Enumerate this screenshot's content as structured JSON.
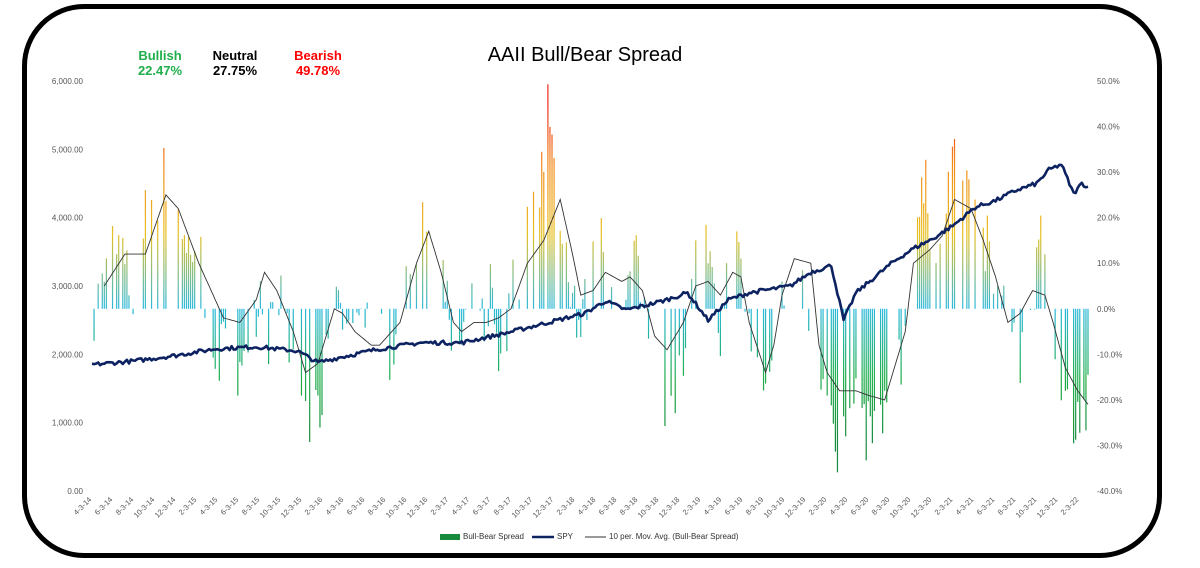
{
  "header": {
    "bullish_label": "Bullish",
    "bullish_value": "22.47%",
    "neutral_label": "Neutral",
    "neutral_value": "27.75%",
    "bearish_label": "Bearish",
    "bearish_value": "49.78%",
    "colors": {
      "bullish": "#1fae4b",
      "neutral": "#000000",
      "bearish": "#ff0000"
    }
  },
  "chart_data": {
    "type": "bar+line",
    "title": "AAII Bull/Bear Spread",
    "left_axis": {
      "ticks": [
        "0.00",
        "1,000.00",
        "2,000.00",
        "3,000.00",
        "4,000.00",
        "5,000.00",
        "6,000.00"
      ],
      "ylim": [
        0,
        6000
      ]
    },
    "right_axis": {
      "ticks": [
        "-40.0%",
        "-30.0%",
        "-20.0%",
        "-10.0%",
        "0.0%",
        "10.0%",
        "20.0%",
        "30.0%",
        "40.0%",
        "50.0%"
      ],
      "ylim": [
        -40,
        50
      ]
    },
    "x_tick_labels": [
      "4-3-14",
      "6-3-14",
      "8-3-14",
      "10-3-14",
      "12-3-14",
      "2-3-15",
      "4-3-15",
      "6-3-15",
      "8-3-15",
      "10-3-15",
      "12-3-15",
      "2-3-16",
      "4-3-16",
      "6-3-16",
      "8-3-16",
      "10-3-16",
      "12-3-16",
      "2-3-17",
      "4-3-17",
      "6-3-17",
      "8-3-17",
      "10-3-17",
      "12-3-17",
      "2-3-18",
      "4-3-18",
      "6-3-18",
      "8-3-18",
      "10-3-18",
      "12-3-18",
      "2-3-19",
      "4-3-19",
      "6-3-19",
      "8-3-19",
      "10-3-19",
      "12-3-19",
      "2-3-20",
      "4-3-20",
      "6-3-20",
      "8-3-20",
      "10-3-20",
      "12-3-20",
      "2-3-21",
      "4-3-21",
      "6-3-21",
      "8-3-21",
      "10-3-21",
      "12-3-21",
      "2-3-22"
    ],
    "legend": [
      "Bull-Bear Spread",
      "SPY",
      "10 per. Mov. Avg. (Bull-Bear Spread)"
    ],
    "series": [
      {
        "name": "Bull-Bear Spread",
        "axis": "right",
        "kind": "bar",
        "anchors": [
          [
            0,
            -8
          ],
          [
            3,
            5
          ],
          [
            6,
            3
          ],
          [
            10,
            15
          ],
          [
            14,
            10
          ],
          [
            18,
            5
          ],
          [
            22,
            -2
          ],
          [
            26,
            20
          ],
          [
            30,
            25
          ],
          [
            34,
            28
          ],
          [
            38,
            30
          ],
          [
            42,
            20
          ],
          [
            46,
            12
          ],
          [
            50,
            15
          ],
          [
            54,
            8
          ],
          [
            58,
            -5
          ],
          [
            62,
            -10
          ],
          [
            66,
            -8
          ],
          [
            70,
            -18
          ],
          [
            74,
            -5
          ],
          [
            78,
            -2
          ],
          [
            82,
            5
          ],
          [
            86,
            -5
          ],
          [
            90,
            8
          ],
          [
            94,
            -6
          ],
          [
            98,
            -15
          ],
          [
            102,
            -20
          ],
          [
            106,
            -28
          ],
          [
            110,
            -25
          ],
          [
            114,
            -10
          ],
          [
            118,
            5
          ],
          [
            122,
            3
          ],
          [
            126,
            0
          ],
          [
            130,
            -8
          ],
          [
            134,
            -5
          ],
          [
            138,
            -3
          ],
          [
            142,
            -10
          ],
          [
            146,
            -12
          ],
          [
            150,
            -8
          ],
          [
            154,
            5
          ],
          [
            158,
            15
          ],
          [
            162,
            25
          ],
          [
            166,
            20
          ],
          [
            170,
            10
          ],
          [
            174,
            -5
          ],
          [
            178,
            -12
          ],
          [
            182,
            -8
          ],
          [
            186,
            0
          ],
          [
            190,
            -5
          ],
          [
            194,
            5
          ],
          [
            198,
            -10
          ],
          [
            202,
            -5
          ],
          [
            206,
            8
          ],
          [
            210,
            12
          ],
          [
            214,
            20
          ],
          [
            218,
            30
          ],
          [
            222,
            42
          ],
          [
            226,
            28
          ],
          [
            230,
            15
          ],
          [
            234,
            5
          ],
          [
            238,
            -5
          ],
          [
            242,
            5
          ],
          [
            246,
            10
          ],
          [
            250,
            18
          ],
          [
            254,
            8
          ],
          [
            258,
            0
          ],
          [
            262,
            5
          ],
          [
            266,
            10
          ],
          [
            270,
            -3
          ],
          [
            274,
            -10
          ],
          [
            278,
            -18
          ],
          [
            282,
            -25
          ],
          [
            286,
            -15
          ],
          [
            290,
            -5
          ],
          [
            294,
            10
          ],
          [
            298,
            15
          ],
          [
            302,
            5
          ],
          [
            306,
            -5
          ],
          [
            310,
            8
          ],
          [
            314,
            12
          ],
          [
            318,
            0
          ],
          [
            322,
            -10
          ],
          [
            326,
            -20
          ],
          [
            330,
            -15
          ],
          [
            334,
            -5
          ],
          [
            338,
            5
          ],
          [
            342,
            15
          ],
          [
            346,
            10
          ],
          [
            350,
            -5
          ],
          [
            354,
            -18
          ],
          [
            358,
            -22
          ],
          [
            362,
            -28
          ],
          [
            366,
            -30
          ],
          [
            370,
            -25
          ],
          [
            374,
            -20
          ],
          [
            378,
            -28
          ],
          [
            382,
            -22
          ],
          [
            386,
            -25
          ],
          [
            390,
            -15
          ],
          [
            394,
            -10
          ],
          [
            398,
            5
          ],
          [
            402,
            20
          ],
          [
            406,
            25
          ],
          [
            410,
            15
          ],
          [
            414,
            20
          ],
          [
            418,
            28
          ],
          [
            422,
            32
          ],
          [
            426,
            25
          ],
          [
            430,
            20
          ],
          [
            434,
            15
          ],
          [
            438,
            10
          ],
          [
            442,
            5
          ],
          [
            446,
            0
          ],
          [
            450,
            -5
          ],
          [
            454,
            -12
          ],
          [
            458,
            5
          ],
          [
            462,
            15
          ],
          [
            466,
            10
          ],
          [
            470,
            -10
          ],
          [
            474,
            -22
          ],
          [
            478,
            -28
          ],
          [
            482,
            -25
          ],
          [
            486,
            -20
          ],
          [
            490,
            -15
          ]
        ]
      },
      {
        "name": "SPY",
        "axis": "left",
        "kind": "line",
        "anchors": [
          [
            0,
            1850
          ],
          [
            20,
            1900
          ],
          [
            40,
            1980
          ],
          [
            60,
            2080
          ],
          [
            80,
            2110
          ],
          [
            100,
            2050
          ],
          [
            110,
            1880
          ],
          [
            120,
            1950
          ],
          [
            140,
            2080
          ],
          [
            160,
            2170
          ],
          [
            180,
            2170
          ],
          [
            200,
            2300
          ],
          [
            220,
            2450
          ],
          [
            240,
            2600
          ],
          [
            250,
            2780
          ],
          [
            260,
            2650
          ],
          [
            270,
            2720
          ],
          [
            280,
            2800
          ],
          [
            290,
            2900
          ],
          [
            300,
            2500
          ],
          [
            310,
            2800
          ],
          [
            320,
            2900
          ],
          [
            330,
            2950
          ],
          [
            340,
            3000
          ],
          [
            350,
            3200
          ],
          [
            360,
            3300
          ],
          [
            366,
            2500
          ],
          [
            372,
            2900
          ],
          [
            380,
            3100
          ],
          [
            390,
            3350
          ],
          [
            400,
            3550
          ],
          [
            410,
            3700
          ],
          [
            420,
            3900
          ],
          [
            430,
            4150
          ],
          [
            440,
            4250
          ],
          [
            450,
            4400
          ],
          [
            460,
            4500
          ],
          [
            466,
            4700
          ],
          [
            472,
            4780
          ],
          [
            478,
            4350
          ],
          [
            482,
            4500
          ],
          [
            485,
            4450
          ]
        ]
      },
      {
        "name": "10 per. Mov. Avg. (Bull-Bear Spread)",
        "axis": "right",
        "kind": "line",
        "anchors": [
          [
            6,
            5
          ],
          [
            16,
            12
          ],
          [
            26,
            12
          ],
          [
            36,
            25
          ],
          [
            42,
            22
          ],
          [
            52,
            10
          ],
          [
            58,
            4
          ],
          [
            64,
            -2
          ],
          [
            72,
            -3
          ],
          [
            80,
            2
          ],
          [
            84,
            8
          ],
          [
            90,
            4
          ],
          [
            98,
            -5
          ],
          [
            104,
            -14
          ],
          [
            110,
            -12
          ],
          [
            118,
            0
          ],
          [
            122,
            -1
          ],
          [
            128,
            -5
          ],
          [
            136,
            -8
          ],
          [
            140,
            -8
          ],
          [
            150,
            -3
          ],
          [
            158,
            10
          ],
          [
            164,
            17
          ],
          [
            170,
            8
          ],
          [
            176,
            -3
          ],
          [
            180,
            -5
          ],
          [
            186,
            -3
          ],
          [
            192,
            -3
          ],
          [
            198,
            -2
          ],
          [
            204,
            0
          ],
          [
            212,
            10
          ],
          [
            220,
            15
          ],
          [
            228,
            24
          ],
          [
            234,
            12
          ],
          [
            238,
            3
          ],
          [
            244,
            4
          ],
          [
            250,
            8
          ],
          [
            258,
            6
          ],
          [
            262,
            7
          ],
          [
            268,
            4
          ],
          [
            274,
            -6
          ],
          [
            280,
            -9
          ],
          [
            288,
            -3
          ],
          [
            294,
            5
          ],
          [
            300,
            6
          ],
          [
            306,
            3
          ],
          [
            312,
            8
          ],
          [
            316,
            7
          ],
          [
            320,
            -3
          ],
          [
            328,
            -14
          ],
          [
            332,
            -8
          ],
          [
            336,
            3
          ],
          [
            342,
            11
          ],
          [
            350,
            10
          ],
          [
            354,
            -8
          ],
          [
            358,
            -14
          ],
          [
            364,
            -18
          ],
          [
            372,
            -18
          ],
          [
            378,
            -19
          ],
          [
            386,
            -20
          ],
          [
            390,
            -14
          ],
          [
            396,
            -5
          ],
          [
            400,
            10
          ],
          [
            408,
            13
          ],
          [
            414,
            16
          ],
          [
            420,
            24
          ],
          [
            428,
            22
          ],
          [
            434,
            15
          ],
          [
            440,
            7
          ],
          [
            446,
            -3
          ],
          [
            452,
            -1
          ],
          [
            458,
            4
          ],
          [
            464,
            3
          ],
          [
            468,
            -3
          ],
          [
            474,
            -13
          ],
          [
            480,
            -18
          ],
          [
            485,
            -21
          ]
        ]
      }
    ]
  }
}
